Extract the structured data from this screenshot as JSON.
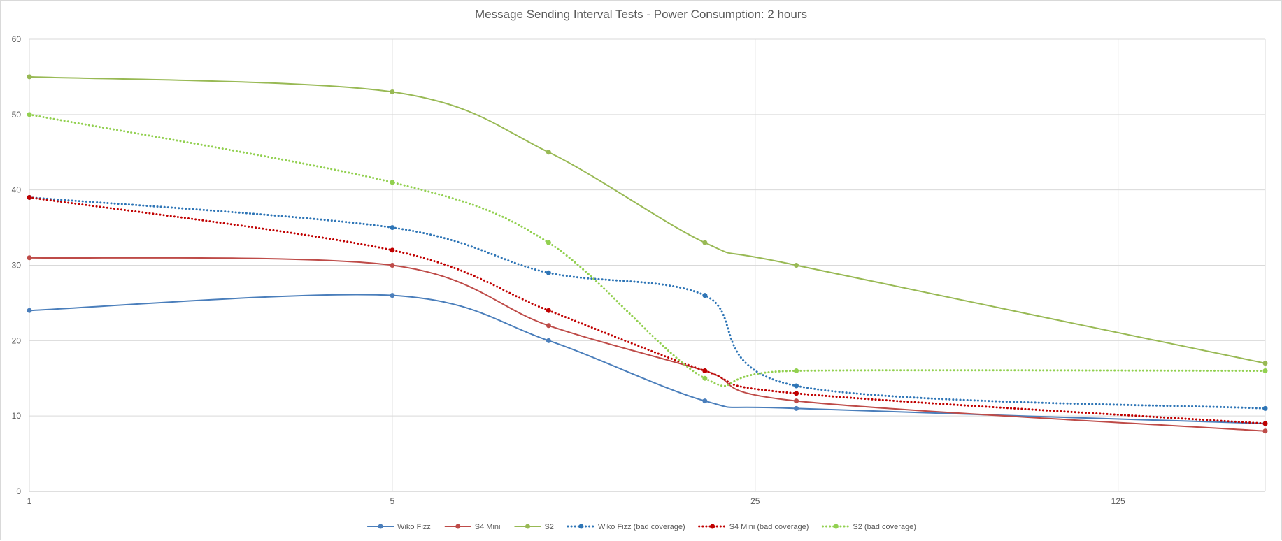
{
  "chart_data": {
    "type": "line",
    "title": "Message Sending Interval Tests - Power Consumption: 2 hours",
    "xlabel": "",
    "ylabel": "",
    "x_scale": "log5",
    "x": [
      1,
      5,
      10,
      20,
      30,
      240
    ],
    "x_ticks": [
      1,
      5,
      25,
      125
    ],
    "y_ticks": [
      0,
      10,
      20,
      30,
      40,
      50,
      60
    ],
    "ylim": [
      0,
      60
    ],
    "grid": true,
    "legend_position": "bottom",
    "series": [
      {
        "name": "Wiko Fizz",
        "values": [
          24,
          26,
          20,
          12,
          11,
          9
        ],
        "color": "#4a7ebb",
        "style": "solid"
      },
      {
        "name": "S4 Mini",
        "values": [
          31,
          30,
          22,
          16,
          12,
          8
        ],
        "color": "#be4b48",
        "style": "solid"
      },
      {
        "name": "S2",
        "values": [
          55,
          53,
          45,
          33,
          30,
          17
        ],
        "color": "#98b954",
        "style": "solid"
      },
      {
        "name": "Wiko Fizz (bad coverage)",
        "values": [
          39,
          35,
          29,
          26,
          14,
          11
        ],
        "color": "#2e75b6",
        "style": "dotted"
      },
      {
        "name": "S4 Mini (bad coverage)",
        "values": [
          39,
          32,
          24,
          16,
          13,
          9
        ],
        "color": "#c00000",
        "style": "dotted"
      },
      {
        "name": "S2 (bad coverage)",
        "values": [
          50,
          41,
          33,
          15,
          16,
          16
        ],
        "color": "#92d050",
        "style": "dotted"
      }
    ]
  }
}
